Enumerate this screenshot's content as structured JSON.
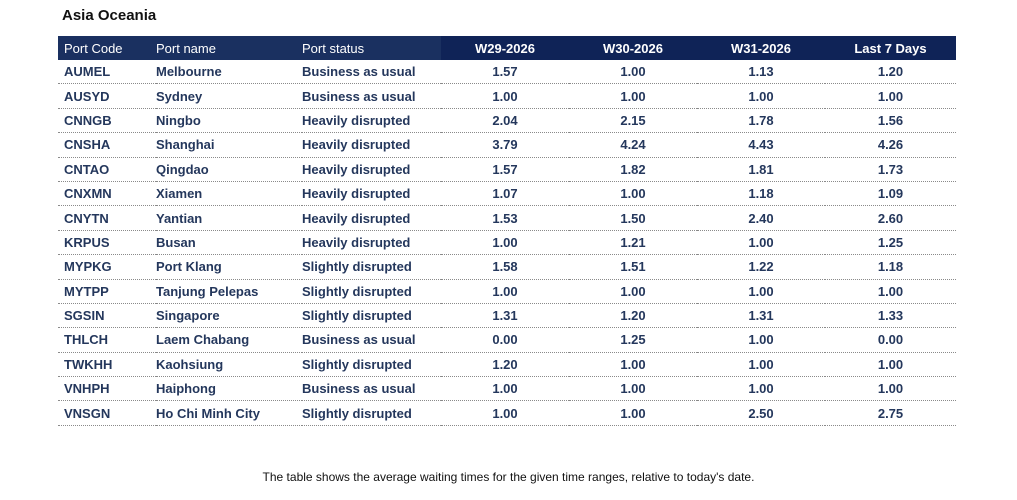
{
  "section_title": "Asia Oceania",
  "caption": "The table shows the average waiting times for the given time ranges, relative to today's date.",
  "chart_data": {
    "type": "table",
    "columns": [
      "Port Code",
      "Port name",
      "Port status",
      "W29-2026",
      "W30-2026",
      "W31-2026",
      "Last 7 Days"
    ],
    "rows": [
      [
        "AUMEL",
        "Melbourne",
        "Business as usual",
        "1.57",
        "1.00",
        "1.13",
        "1.20"
      ],
      [
        "AUSYD",
        "Sydney",
        "Business as usual",
        "1.00",
        "1.00",
        "1.00",
        "1.00"
      ],
      [
        "CNNGB",
        "Ningbo",
        "Heavily disrupted",
        "2.04",
        "2.15",
        "1.78",
        "1.56"
      ],
      [
        "CNSHA",
        "Shanghai",
        "Heavily disrupted",
        "3.79",
        "4.24",
        "4.43",
        "4.26"
      ],
      [
        "CNTAO",
        "Qingdao",
        "Heavily disrupted",
        "1.57",
        "1.82",
        "1.81",
        "1.73"
      ],
      [
        "CNXMN",
        "Xiamen",
        "Heavily disrupted",
        "1.07",
        "1.00",
        "1.18",
        "1.09"
      ],
      [
        "CNYTN",
        "Yantian",
        "Heavily disrupted",
        "1.53",
        "1.50",
        "2.40",
        "2.60"
      ],
      [
        "KRPUS",
        "Busan",
        "Heavily disrupted",
        "1.00",
        "1.21",
        "1.00",
        "1.25"
      ],
      [
        "MYPKG",
        "Port Klang",
        "Slightly disrupted",
        "1.58",
        "1.51",
        "1.22",
        "1.18"
      ],
      [
        "MYTPP",
        "Tanjung Pelepas",
        "Slightly disrupted",
        "1.00",
        "1.00",
        "1.00",
        "1.00"
      ],
      [
        "SGSIN",
        "Singapore",
        "Slightly disrupted",
        "1.31",
        "1.20",
        "1.31",
        "1.33"
      ],
      [
        "THLCH",
        "Laem Chabang",
        "Business as usual",
        "0.00",
        "1.25",
        "1.00",
        "0.00"
      ],
      [
        "TWKHH",
        "Kaohsiung",
        "Slightly disrupted",
        "1.20",
        "1.00",
        "1.00",
        "1.00"
      ],
      [
        "VNHPH",
        "Haiphong",
        "Business as usual",
        "1.00",
        "1.00",
        "1.00",
        "1.00"
      ],
      [
        "VNSGN",
        "Ho Chi Minh City",
        "Slightly disrupted",
        "1.00",
        "1.00",
        "2.50",
        "2.75"
      ]
    ]
  },
  "colors": {
    "header_bg": "#1a3060",
    "header_numeric_bg": "#0f2357",
    "header_text": "#ffffff",
    "cell_text": "#24375c"
  }
}
